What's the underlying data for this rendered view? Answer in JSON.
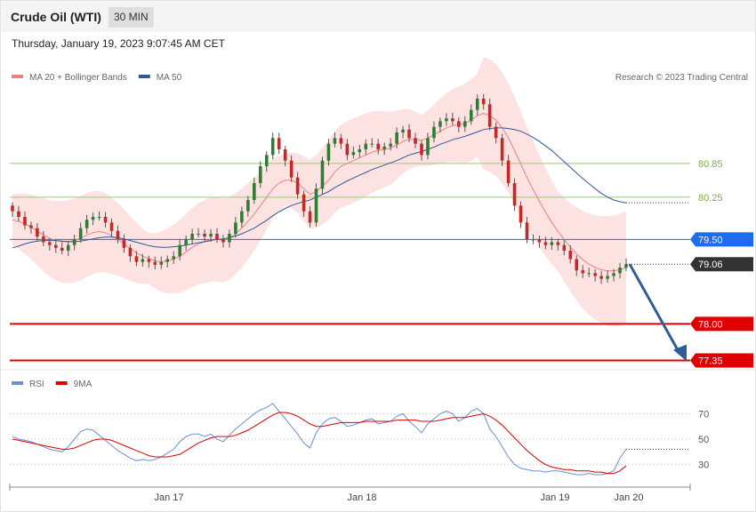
{
  "header": {
    "title": "Crude Oil (WTI)",
    "timeframe": "30 MIN",
    "datetime": "Thursday, January 19, 2023 9:07:45 AM CET"
  },
  "colors": {
    "up": "#2e7d32",
    "down": "#c62828",
    "ma20": "#f08080",
    "bollinger_fill": "#fde2e2",
    "ma50": "#2d5a9a",
    "resistance": "#9ccc65",
    "pivot": "#1e6bf0",
    "support": "#e00000",
    "arrow": "#2f5d9a",
    "rsi": "#6a8fe0",
    "rsi_ma": "#e00000"
  },
  "chart_data": [
    {
      "type": "line",
      "title": "",
      "legend": [
        {
          "name": "MA 20 + Bollinger Bands",
          "color": "#f08080"
        },
        {
          "name": "MA 50",
          "color": "#2d5a9a"
        }
      ],
      "legend_placement": "top-left",
      "credit": "Research © 2023 Trading Central",
      "x_ticks": [
        "Jan 17",
        "Jan 18",
        "Jan 19",
        "Jan 20"
      ],
      "ylim": [
        77.2,
        82.3
      ],
      "levels": [
        {
          "value": 80.85,
          "label": "80.85",
          "kind": "resistance"
        },
        {
          "value": 80.25,
          "label": "80.25",
          "kind": "resistance"
        },
        {
          "value": 79.5,
          "label": "79.50",
          "kind": "pivot"
        },
        {
          "value": 78.0,
          "label": "78.00",
          "kind": "support"
        },
        {
          "value": 77.35,
          "label": "77.35",
          "kind": "support"
        }
      ],
      "last_price": {
        "value": 79.06,
        "label": "79.06"
      },
      "forecast_arrow": {
        "from": 79.06,
        "to": 77.35
      },
      "price_path": [
        80.0,
        79.9,
        79.75,
        79.7,
        79.55,
        79.45,
        79.4,
        79.35,
        79.3,
        79.4,
        79.5,
        79.7,
        79.85,
        79.9,
        79.9,
        79.8,
        79.65,
        79.5,
        79.35,
        79.2,
        79.1,
        79.15,
        79.1,
        79.05,
        79.1,
        79.15,
        79.2,
        79.4,
        79.5,
        79.6,
        79.6,
        79.55,
        79.6,
        79.5,
        79.45,
        79.6,
        79.8,
        80.0,
        80.2,
        80.5,
        80.8,
        81.0,
        81.3,
        81.1,
        80.9,
        80.6,
        80.3,
        80.0,
        79.8,
        80.4,
        80.9,
        81.2,
        81.3,
        81.2,
        81.0,
        81.05,
        81.1,
        81.2,
        81.2,
        81.1,
        81.15,
        81.2,
        81.4,
        81.45,
        81.3,
        81.2,
        81.0,
        81.3,
        81.5,
        81.6,
        81.65,
        81.6,
        81.5,
        81.6,
        81.8,
        82.0,
        81.9,
        81.5,
        81.3,
        80.9,
        80.5,
        80.1,
        79.8,
        79.5,
        79.5,
        79.45,
        79.4,
        79.45,
        79.4,
        79.3,
        79.15,
        78.95,
        78.9,
        78.9,
        78.85,
        78.8,
        78.85,
        78.9,
        79.0,
        79.06
      ],
      "ma20_path": [
        79.85,
        79.82,
        79.78,
        79.72,
        79.65,
        79.58,
        79.52,
        79.48,
        79.46,
        79.46,
        79.48,
        79.52,
        79.58,
        79.62,
        79.64,
        79.62,
        79.56,
        79.5,
        79.42,
        79.34,
        79.26,
        79.2,
        79.16,
        79.12,
        79.1,
        79.12,
        79.15,
        79.2,
        79.28,
        79.36,
        79.42,
        79.46,
        79.5,
        79.5,
        79.48,
        79.52,
        79.6,
        79.7,
        79.82,
        79.95,
        80.1,
        80.25,
        80.4,
        80.5,
        80.55,
        80.55,
        80.5,
        80.4,
        80.3,
        80.35,
        80.45,
        80.55,
        80.7,
        80.8,
        80.85,
        80.9,
        80.95,
        81.0,
        81.05,
        81.08,
        81.1,
        81.12,
        81.18,
        81.24,
        81.28,
        81.28,
        81.26,
        81.3,
        81.36,
        81.42,
        81.48,
        81.52,
        81.54,
        81.56,
        81.62,
        81.7,
        81.74,
        81.7,
        81.62,
        81.48,
        81.3,
        81.08,
        80.84,
        80.6,
        80.38,
        80.18,
        79.98,
        79.8,
        79.64,
        79.5,
        79.36,
        79.24,
        79.14,
        79.06,
        79.0,
        78.96,
        78.94,
        78.94,
        78.96,
        79.0
      ],
      "ma50_path": [
        79.35,
        79.38,
        79.42,
        79.45,
        79.47,
        79.48,
        79.48,
        79.48,
        79.47,
        79.46,
        79.46,
        79.47,
        79.49,
        79.51,
        79.53,
        79.54,
        79.54,
        79.53,
        79.51,
        79.48,
        79.45,
        79.42,
        79.39,
        79.37,
        79.36,
        79.36,
        79.37,
        79.38,
        79.4,
        79.42,
        79.44,
        79.46,
        79.48,
        79.5,
        79.51,
        79.53,
        79.56,
        79.6,
        79.65,
        79.7,
        79.77,
        79.84,
        79.92,
        79.99,
        80.05,
        80.1,
        80.14,
        80.17,
        80.2,
        80.25,
        80.3,
        80.35,
        80.42,
        80.48,
        80.54,
        80.59,
        80.64,
        80.69,
        80.74,
        80.78,
        80.82,
        80.86,
        80.9,
        80.95,
        81.0,
        81.03,
        81.06,
        81.1,
        81.14,
        81.19,
        81.23,
        81.27,
        81.3,
        81.33,
        81.37,
        81.41,
        81.45,
        81.47,
        81.48,
        81.48,
        81.47,
        81.45,
        81.42,
        81.37,
        81.31,
        81.24,
        81.16,
        81.08,
        80.98,
        80.88,
        80.78,
        80.68,
        80.58,
        80.49,
        80.4,
        80.32,
        80.25,
        80.2,
        80.17,
        80.15
      ]
    },
    {
      "type": "line",
      "title": "",
      "legend": [
        {
          "name": "RSI",
          "color": "#6a8fe0"
        },
        {
          "name": "9MA",
          "color": "#e00000"
        }
      ],
      "legend_placement": "top-left",
      "ylim": [
        15,
        85
      ],
      "y_ticks": [
        70,
        50,
        30
      ],
      "rsi_path": [
        52,
        50,
        49,
        48,
        46,
        44,
        42,
        41,
        40,
        44,
        50,
        56,
        58,
        57,
        53,
        49,
        45,
        41,
        38,
        35,
        33,
        34,
        33,
        34,
        36,
        39,
        42,
        48,
        52,
        54,
        54,
        52,
        54,
        50,
        48,
        53,
        58,
        62,
        66,
        70,
        73,
        75,
        78,
        72,
        66,
        60,
        54,
        47,
        43,
        55,
        62,
        66,
        67,
        64,
        60,
        61,
        63,
        65,
        66,
        62,
        63,
        64,
        68,
        70,
        64,
        60,
        55,
        62,
        66,
        70,
        72,
        70,
        64,
        67,
        72,
        74,
        70,
        58,
        52,
        44,
        36,
        30,
        27,
        26,
        25,
        25,
        24,
        25,
        25,
        24,
        23,
        22,
        22,
        23,
        22,
        22,
        23,
        25,
        35,
        42
      ],
      "rsi_ma_path": [
        50,
        49,
        48,
        47,
        46,
        45,
        44,
        43,
        42,
        42,
        43,
        45,
        47,
        49,
        50,
        50,
        49,
        47,
        45,
        43,
        41,
        39,
        37,
        36,
        36,
        36,
        37,
        38,
        41,
        44,
        47,
        49,
        51,
        52,
        52,
        52,
        53,
        55,
        57,
        60,
        63,
        66,
        69,
        71,
        71,
        70,
        68,
        65,
        62,
        60,
        60,
        61,
        62,
        63,
        63,
        63,
        63,
        64,
        64,
        64,
        64,
        64,
        65,
        65,
        65,
        65,
        64,
        64,
        64,
        65,
        66,
        67,
        67,
        67,
        68,
        69,
        70,
        68,
        65,
        61,
        56,
        51,
        46,
        41,
        37,
        33,
        30,
        28,
        27,
        26,
        26,
        25,
        25,
        25,
        24,
        24,
        23,
        23,
        25,
        29
      ]
    }
  ]
}
